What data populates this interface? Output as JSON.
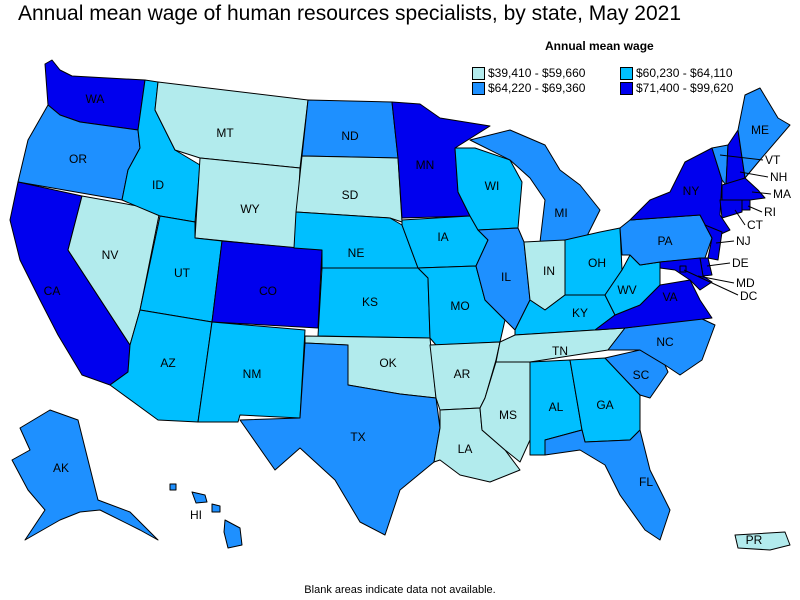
{
  "title": "Annual mean wage of human resources specialists, by state, May 2021",
  "legend": {
    "title": "Annual mean wage",
    "items": [
      {
        "label": "$39,410 - $59,660",
        "color": "#b2ebed"
      },
      {
        "label": "$60,230 - $64,110",
        "color": "#00bfff"
      },
      {
        "label": "$64,220 - $69,360",
        "color": "#1e90ff"
      },
      {
        "label": "$71,400 - $99,620",
        "color": "#0000ee"
      }
    ]
  },
  "note": "Blank areas indicate data not available.",
  "states": [
    {
      "abbr": "WA",
      "tier": 3
    },
    {
      "abbr": "OR",
      "tier": 2
    },
    {
      "abbr": "CA",
      "tier": 3
    },
    {
      "abbr": "NV",
      "tier": 0
    },
    {
      "abbr": "ID",
      "tier": 1
    },
    {
      "abbr": "MT",
      "tier": 0
    },
    {
      "abbr": "WY",
      "tier": 0
    },
    {
      "abbr": "UT",
      "tier": 1
    },
    {
      "abbr": "AZ",
      "tier": 1
    },
    {
      "abbr": "CO",
      "tier": 3
    },
    {
      "abbr": "NM",
      "tier": 1
    },
    {
      "abbr": "ND",
      "tier": 2
    },
    {
      "abbr": "SD",
      "tier": 0
    },
    {
      "abbr": "NE",
      "tier": 1
    },
    {
      "abbr": "KS",
      "tier": 1
    },
    {
      "abbr": "OK",
      "tier": 0
    },
    {
      "abbr": "TX",
      "tier": 2
    },
    {
      "abbr": "MN",
      "tier": 3
    },
    {
      "abbr": "IA",
      "tier": 1
    },
    {
      "abbr": "MO",
      "tier": 1
    },
    {
      "abbr": "AR",
      "tier": 0
    },
    {
      "abbr": "LA",
      "tier": 0
    },
    {
      "abbr": "WI",
      "tier": 1
    },
    {
      "abbr": "IL",
      "tier": 2
    },
    {
      "abbr": "MI",
      "tier": 2
    },
    {
      "abbr": "IN",
      "tier": 0
    },
    {
      "abbr": "OH",
      "tier": 1
    },
    {
      "abbr": "KY",
      "tier": 1
    },
    {
      "abbr": "TN",
      "tier": 0
    },
    {
      "abbr": "MS",
      "tier": 0
    },
    {
      "abbr": "AL",
      "tier": 1
    },
    {
      "abbr": "GA",
      "tier": 1
    },
    {
      "abbr": "FL",
      "tier": 2
    },
    {
      "abbr": "SC",
      "tier": 2
    },
    {
      "abbr": "NC",
      "tier": 2
    },
    {
      "abbr": "VA",
      "tier": 3
    },
    {
      "abbr": "WV",
      "tier": 1
    },
    {
      "abbr": "PA",
      "tier": 2
    },
    {
      "abbr": "NY",
      "tier": 3
    },
    {
      "abbr": "VT",
      "tier": 2
    },
    {
      "abbr": "NH",
      "tier": 3
    },
    {
      "abbr": "ME",
      "tier": 2
    },
    {
      "abbr": "MA",
      "tier": 3
    },
    {
      "abbr": "RI",
      "tier": 3
    },
    {
      "abbr": "CT",
      "tier": 3
    },
    {
      "abbr": "NJ",
      "tier": 3
    },
    {
      "abbr": "DE",
      "tier": 3
    },
    {
      "abbr": "MD",
      "tier": 3
    },
    {
      "abbr": "DC",
      "tier": 3
    },
    {
      "abbr": "AK",
      "tier": 2
    },
    {
      "abbr": "HI",
      "tier": 2
    },
    {
      "abbr": "PR",
      "tier": 0
    }
  ]
}
